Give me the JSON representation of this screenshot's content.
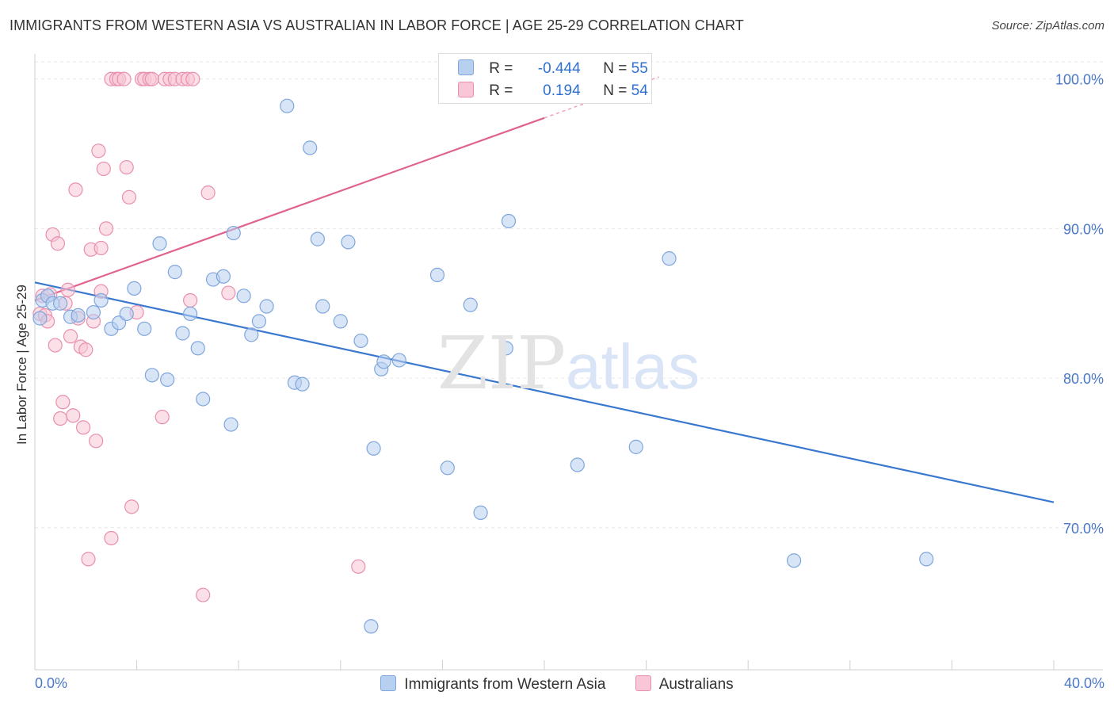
{
  "title": "IMMIGRANTS FROM WESTERN ASIA VS AUSTRALIAN IN LABOR FORCE | AGE 25-29 CORRELATION CHART",
  "source": "Source: ZipAtlas.com",
  "watermark": {
    "zip": "ZIP",
    "atlas": "atlas"
  },
  "legend": {
    "r_label": "R =",
    "n_label": "N =",
    "series": [
      {
        "r": "-0.444",
        "n": "55"
      },
      {
        "r": "0.194",
        "n": "54"
      }
    ]
  },
  "bottom_legend": [
    "Immigrants from Western Asia",
    "Australians"
  ],
  "colors": {
    "blue_fill": "#b8d0f0",
    "blue_stroke": "#7fa6dc",
    "blue_line": "#3a78d0",
    "pink_fill": "#f8c6d6",
    "pink_stroke": "#e98fae",
    "pink_line": "#e0638e",
    "tick_text": "#4a78c8",
    "grid": "#e6e6e6"
  },
  "chart_data": {
    "type": "scatter",
    "title": "IMMIGRANTS FROM WESTERN ASIA VS AUSTRALIAN IN LABOR FORCE | AGE 25-29 CORRELATION CHART",
    "xlabel": "",
    "ylabel": "In Labor Force | Age 25-29",
    "xlim": [
      0,
      40
    ],
    "ylim": [
      60.5,
      102
    ],
    "x_tick_labels": [
      "0.0%",
      "40.0%"
    ],
    "y_ticks": [
      70,
      80,
      90,
      100
    ],
    "y_tick_labels": [
      "70.0%",
      "80.0%",
      "90.0%",
      "100.0%"
    ],
    "grid": true,
    "legend_position": "top-center",
    "series": [
      {
        "name": "Immigrants from Western Asia",
        "trend": {
          "x": [
            0,
            40
          ],
          "y": [
            86.4,
            71.7
          ]
        },
        "points": [
          [
            0.2,
            84.0
          ],
          [
            0.3,
            85.2
          ],
          [
            0.5,
            85.5
          ],
          [
            0.7,
            85.0
          ],
          [
            1.0,
            85.0
          ],
          [
            1.4,
            84.1
          ],
          [
            1.7,
            84.2
          ],
          [
            2.3,
            84.4
          ],
          [
            2.6,
            85.2
          ],
          [
            3.0,
            83.3
          ],
          [
            3.3,
            83.7
          ],
          [
            3.6,
            84.3
          ],
          [
            3.9,
            86.0
          ],
          [
            4.3,
            83.3
          ],
          [
            4.6,
            80.2
          ],
          [
            4.9,
            89.0
          ],
          [
            5.2,
            79.9
          ],
          [
            5.5,
            87.1
          ],
          [
            5.8,
            83.0
          ],
          [
            6.1,
            84.3
          ],
          [
            6.4,
            82.0
          ],
          [
            6.6,
            78.6
          ],
          [
            7.0,
            86.6
          ],
          [
            7.4,
            86.8
          ],
          [
            7.7,
            76.9
          ],
          [
            7.8,
            89.7
          ],
          [
            8.2,
            85.5
          ],
          [
            8.5,
            82.9
          ],
          [
            8.8,
            83.8
          ],
          [
            9.1,
            84.8
          ],
          [
            9.9,
            98.2
          ],
          [
            10.2,
            79.7
          ],
          [
            10.5,
            79.6
          ],
          [
            10.8,
            95.4
          ],
          [
            11.1,
            89.3
          ],
          [
            11.3,
            84.8
          ],
          [
            12.0,
            83.8
          ],
          [
            12.3,
            89.1
          ],
          [
            12.8,
            82.5
          ],
          [
            13.3,
            75.3
          ],
          [
            13.6,
            80.6
          ],
          [
            13.7,
            81.1
          ],
          [
            14.3,
            81.2
          ],
          [
            15.8,
            86.9
          ],
          [
            16.2,
            74.0
          ],
          [
            17.1,
            84.9
          ],
          [
            17.5,
            71.0
          ],
          [
            18.5,
            82.0
          ],
          [
            18.6,
            90.5
          ],
          [
            21.3,
            74.2
          ],
          [
            23.6,
            75.4
          ],
          [
            24.9,
            88.0
          ],
          [
            29.8,
            67.8
          ],
          [
            35.0,
            67.9
          ],
          [
            13.2,
            63.4
          ]
        ]
      },
      {
        "name": "Australians",
        "trend": {
          "x": [
            0,
            20
          ],
          "y": [
            85.2,
            97.4
          ]
        },
        "points": [
          [
            0.2,
            84.3
          ],
          [
            0.3,
            85.5
          ],
          [
            0.4,
            84.2
          ],
          [
            0.5,
            83.8
          ],
          [
            0.6,
            85.6
          ],
          [
            0.7,
            89.6
          ],
          [
            0.8,
            82.2
          ],
          [
            0.9,
            89.0
          ],
          [
            1.0,
            77.3
          ],
          [
            1.1,
            78.4
          ],
          [
            1.2,
            85.0
          ],
          [
            1.3,
            85.9
          ],
          [
            1.4,
            82.8
          ],
          [
            1.5,
            77.5
          ],
          [
            1.6,
            92.6
          ],
          [
            1.7,
            84.0
          ],
          [
            1.8,
            82.1
          ],
          [
            1.9,
            76.7
          ],
          [
            2.0,
            81.9
          ],
          [
            2.2,
            88.6
          ],
          [
            2.3,
            83.8
          ],
          [
            2.4,
            75.8
          ],
          [
            2.5,
            95.2
          ],
          [
            2.6,
            88.7
          ],
          [
            2.6,
            85.8
          ],
          [
            2.7,
            94.0
          ],
          [
            2.8,
            90.0
          ],
          [
            3.0,
            100.0
          ],
          [
            3.2,
            100.0
          ],
          [
            3.3,
            100.0
          ],
          [
            3.5,
            100.0
          ],
          [
            3.6,
            94.1
          ],
          [
            3.7,
            92.1
          ],
          [
            3.8,
            71.4
          ],
          [
            4.0,
            84.4
          ],
          [
            4.2,
            100.0
          ],
          [
            4.3,
            100.0
          ],
          [
            4.5,
            100.0
          ],
          [
            4.6,
            100.0
          ],
          [
            5.0,
            77.4
          ],
          [
            5.1,
            100.0
          ],
          [
            5.3,
            100.0
          ],
          [
            5.5,
            100.0
          ],
          [
            5.8,
            100.0
          ],
          [
            6.0,
            100.0
          ],
          [
            6.1,
            85.2
          ],
          [
            6.2,
            100.0
          ],
          [
            6.6,
            65.5
          ],
          [
            6.8,
            92.4
          ],
          [
            7.6,
            85.7
          ],
          [
            12.7,
            67.4
          ],
          [
            19.1,
            100.0
          ],
          [
            3.0,
            69.3
          ],
          [
            2.1,
            67.9
          ]
        ]
      }
    ]
  }
}
